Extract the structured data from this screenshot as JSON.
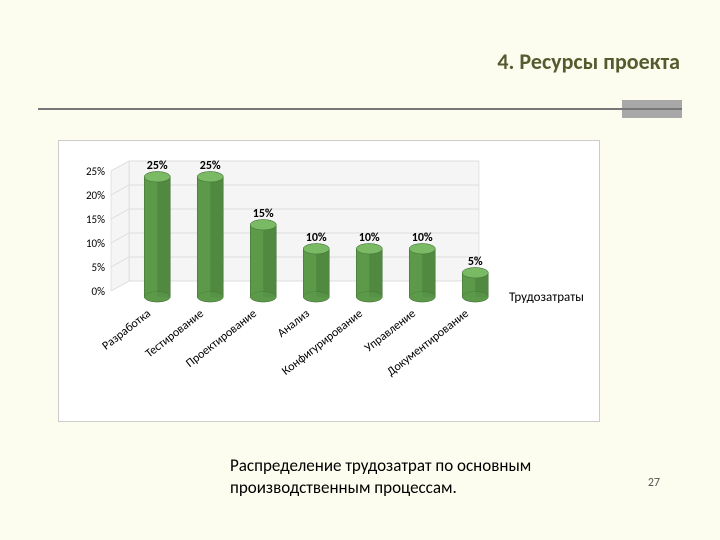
{
  "header": {
    "title": "4. Ресурсы проекта"
  },
  "chart": {
    "type": "bar3d",
    "series_name": "Трудозатраты",
    "categories": [
      "Разработка",
      "Тестирование",
      "Проектирование",
      "Анализ",
      "Конфигурирование",
      "Управление",
      "Документирование"
    ],
    "values": [
      25,
      25,
      15,
      10,
      10,
      10,
      5
    ],
    "value_labels": [
      "25%",
      "25%",
      "15%",
      "10%",
      "10%",
      "10%",
      "5%"
    ],
    "y_ticks": [
      0,
      5,
      10,
      15,
      20,
      25
    ],
    "y_tick_labels": [
      "0%",
      "5%",
      "10%",
      "15%",
      "20%",
      "25%"
    ],
    "ylim": [
      0,
      25
    ],
    "bar_color": "#5c9a4a",
    "bar_top_color": "#7aba65",
    "bar_shadow_color": "#3d6a31",
    "wall_color": "#f5f5f5",
    "floor_grid_color": "#bbbbbb",
    "background": "#ffffff",
    "label_fontsize": 12,
    "axis_fontsize": 11,
    "cat_label_rotate": -38,
    "depth_dx": 18,
    "depth_dy": -10
  },
  "caption": "Распределение трудозатрат по основным производственным процессам.",
  "page_number": "27",
  "layout": {
    "slide_bg": "#fcfdee",
    "title_color": "#555b2f",
    "hr_color": "#777777",
    "hr_accent_color": "#a8a8a8"
  }
}
